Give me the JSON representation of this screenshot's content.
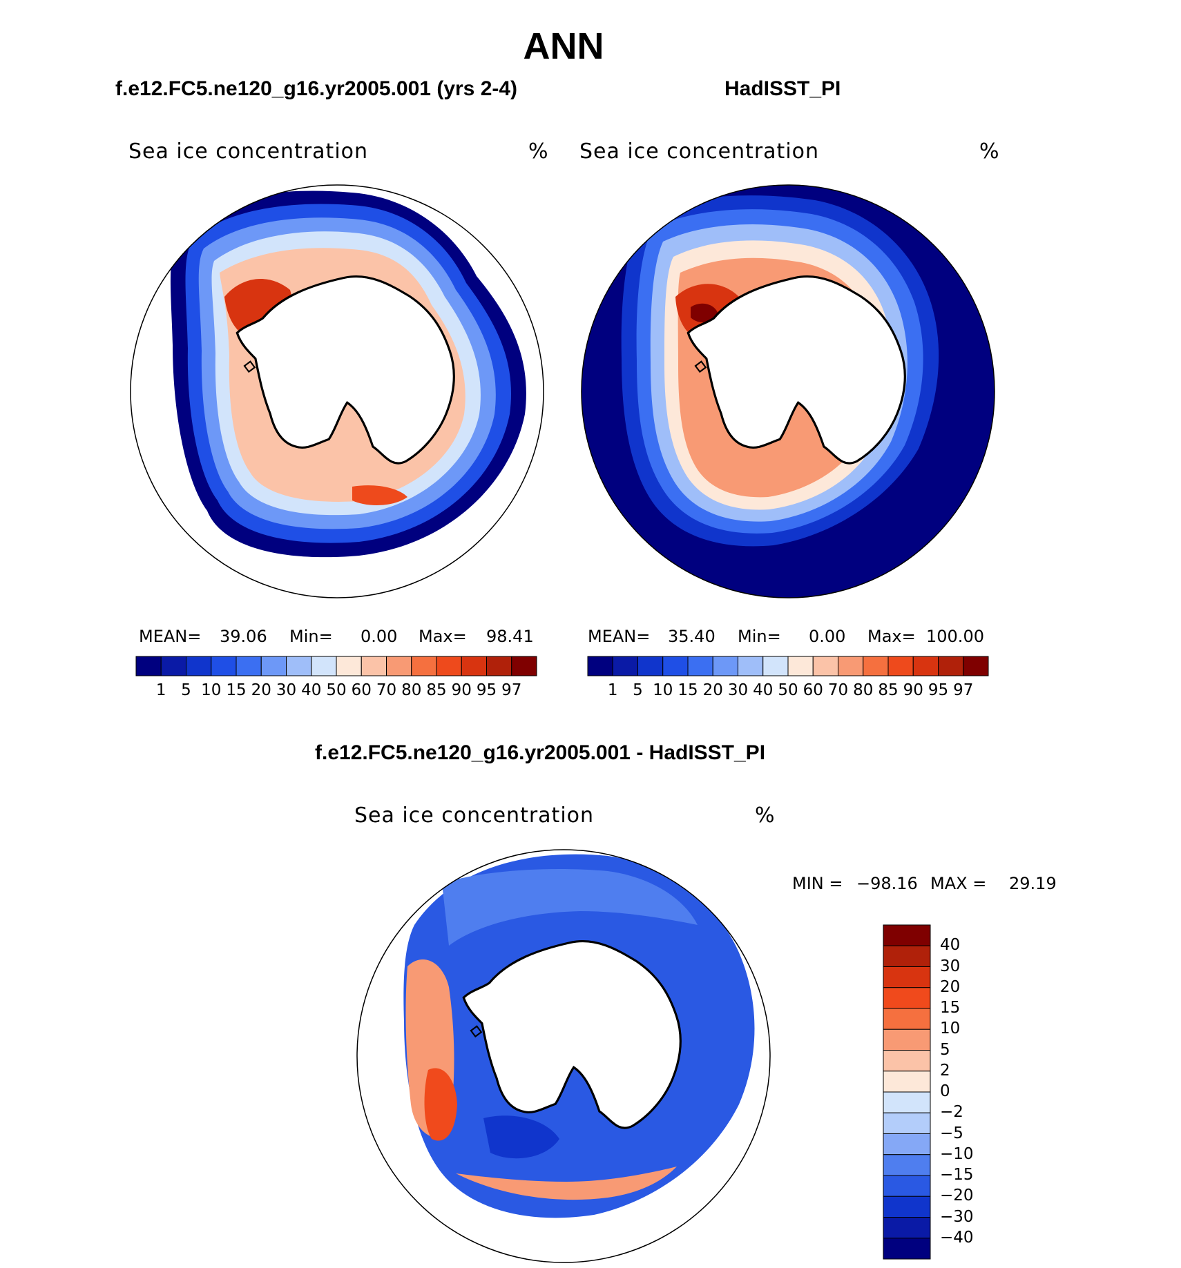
{
  "title": "ANN",
  "panels": [
    {
      "id": "model",
      "title": "f.e12.FC5.ne120_g16.yr2005.001 (yrs 2-4)",
      "variable": "Sea ice concentration",
      "units": "%",
      "stats": {
        "mean_label": "MEAN=",
        "mean": "39.06",
        "min_label": "Min=",
        "min": "0.00",
        "max_label": "Max=",
        "max": "98.41"
      }
    },
    {
      "id": "obs",
      "title": "HadISST_PI",
      "variable": "Sea ice concentration",
      "units": "%",
      "stats": {
        "mean_label": "MEAN=",
        "mean": "35.40",
        "min_label": "Min=",
        "min": "0.00",
        "max_label": "Max=",
        "max": "100.00"
      }
    },
    {
      "id": "diff",
      "title": "f.e12.FC5.ne120_g16.yr2005.001 - HadISST_PI",
      "variable": "Sea ice concentration",
      "units": "%",
      "stats": {
        "min_label": "MIN =",
        "min": "−98.16",
        "max_label": "MAX =",
        "max": "29.19"
      }
    }
  ],
  "colorbar_top": {
    "levels": [
      "1",
      "5",
      "10",
      "15",
      "20",
      "30",
      "40",
      "50",
      "60",
      "70",
      "80",
      "85",
      "90",
      "95",
      "97"
    ],
    "colors": [
      "#00007f",
      "#0a1aa6",
      "#1035cc",
      "#1f4fe6",
      "#3b6ff2",
      "#6d98f7",
      "#9fbef9",
      "#d2e4fb",
      "#fde8d9",
      "#fbc3a8",
      "#f89a74",
      "#f5703f",
      "#ee4a1c",
      "#d83410",
      "#b0210a",
      "#7f0000"
    ]
  },
  "colorbar_diff": {
    "levels": [
      "40",
      "30",
      "20",
      "15",
      "10",
      "5",
      "2",
      "0",
      "−2",
      "−5",
      "−10",
      "−15",
      "−20",
      "−30",
      "−40"
    ],
    "colors": [
      "#7f0000",
      "#b0210a",
      "#d83410",
      "#f04a1c",
      "#f5703f",
      "#f89a74",
      "#fbc3a8",
      "#fde8d9",
      "#d2e4fb",
      "#b3cdfa",
      "#85a8f6",
      "#4f7eef",
      "#2a59e3",
      "#1035cc",
      "#0a1aa6",
      "#00007f"
    ]
  }
}
